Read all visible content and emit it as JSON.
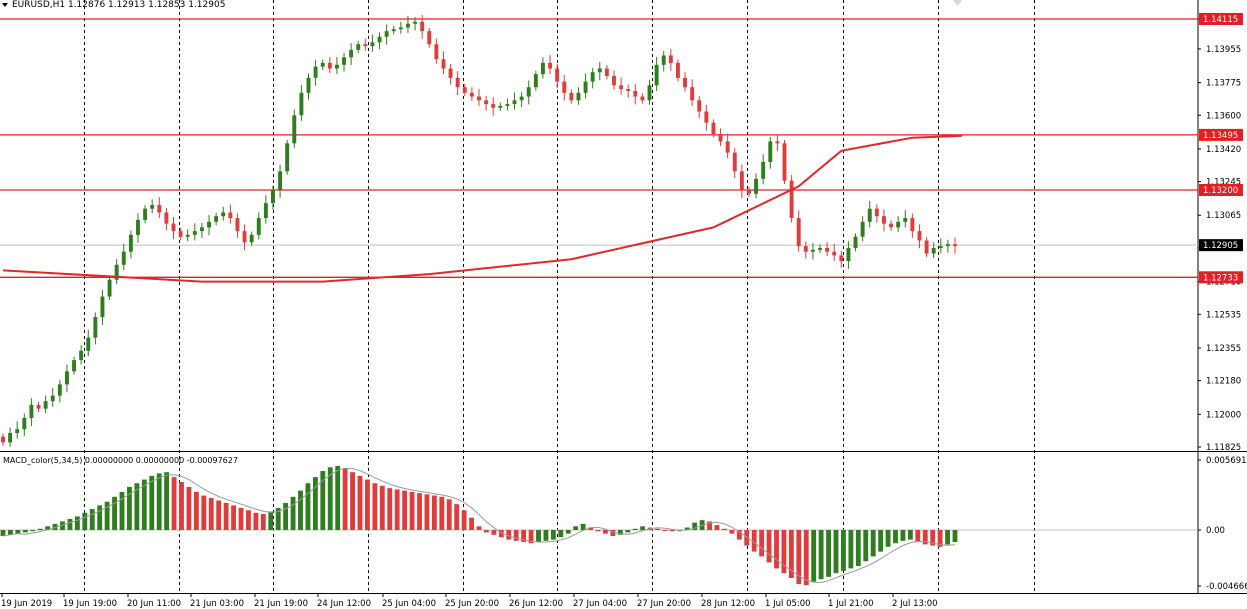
{
  "window": {
    "symbol_header": "EURUSD,H1  1.12876 1.12913 1.12853 1.12905",
    "macd_header": "MACD_color(5,34,5) 0.00000000 0.00000000 -0.00097627"
  },
  "colors": {
    "bull": "#2e7d1e",
    "bear": "#e03c3c",
    "level_line": "#e31e24",
    "ma_line": "#e0292b",
    "grid": "#000000",
    "background": "#ffffff"
  },
  "chart_data": [
    {
      "type": "candlestick",
      "title": "",
      "price_axis": {
        "range": [
          1.1182,
          1.1418
        ],
        "ticks": [
          "1.14115",
          "1.13955",
          "1.13775",
          "1.13600",
          "1.13420",
          "1.13245",
          "1.13065",
          "1.12890",
          "1.12710",
          "1.12535",
          "1.12355",
          "1.12180",
          "1.12000",
          "1.11825"
        ]
      },
      "time_axis": {
        "labels": [
          "19 Jun 2019",
          "19 Jun 19:00",
          "20 Jun 11:00",
          "21 Jun 03:00",
          "21 Jun 19:00",
          "24 Jun 12:00",
          "25 Jun 04:00",
          "25 Jun 20:00",
          "26 Jun 12:00",
          "27 Jun 04:00",
          "27 Jun 20:00",
          "28 Jun 12:00",
          "1 Jul 05:00",
          "1 Jul 21:00",
          "2 Jul 13:00"
        ]
      },
      "current_price": "1.12905",
      "horizontal_levels": [
        {
          "price": 1.14115,
          "label": "1.14115"
        },
        {
          "price": 1.13495,
          "label": "1.13495"
        },
        {
          "price": 1.132,
          "label": "1.13200"
        },
        {
          "price": 1.12733,
          "label": "1.12733"
        }
      ],
      "close_series": [
        1.1185,
        1.119,
        1.1192,
        1.1198,
        1.1205,
        1.1203,
        1.1207,
        1.121,
        1.1216,
        1.1223,
        1.1229,
        1.1234,
        1.1241,
        1.1252,
        1.1263,
        1.1272,
        1.128,
        1.1287,
        1.1296,
        1.1304,
        1.131,
        1.1312,
        1.1308,
        1.1302,
        1.1298,
        1.1295,
        1.1296,
        1.1298,
        1.13,
        1.1303,
        1.1306,
        1.1308,
        1.1305,
        1.1298,
        1.1292,
        1.1296,
        1.1305,
        1.1313,
        1.132,
        1.133,
        1.1345,
        1.136,
        1.1372,
        1.138,
        1.1386,
        1.1388,
        1.1385,
        1.1387,
        1.1391,
        1.1395,
        1.1398,
        1.1397,
        1.1399,
        1.1402,
        1.1405,
        1.1406,
        1.1407,
        1.1409,
        1.141,
        1.1405,
        1.1398,
        1.139,
        1.1385,
        1.138,
        1.1375,
        1.1372,
        1.137,
        1.1368,
        1.1366,
        1.1364,
        1.1365,
        1.1366,
        1.1368,
        1.137,
        1.1375,
        1.1382,
        1.1388,
        1.1385,
        1.1378,
        1.1372,
        1.1368,
        1.1372,
        1.1378,
        1.1383,
        1.1385,
        1.1381,
        1.1376,
        1.1374,
        1.1373,
        1.137,
        1.1368,
        1.1376,
        1.1387,
        1.1392,
        1.1388,
        1.138,
        1.1375,
        1.1368,
        1.1362,
        1.1356,
        1.135,
        1.1346,
        1.134,
        1.133,
        1.132,
        1.1318,
        1.1326,
        1.1335,
        1.1346,
        1.1345,
        1.1325,
        1.1305,
        1.129,
        1.1287,
        1.1288,
        1.1289,
        1.1287,
        1.1285,
        1.1282,
        1.1289,
        1.1295,
        1.1303,
        1.131,
        1.1306,
        1.1302,
        1.13,
        1.1303,
        1.1305,
        1.1298,
        1.1293,
        1.1286,
        1.1289,
        1.129,
        1.1291,
        1.129
      ],
      "moving_average": [
        {
          "x": 0,
          "y": 1.1277
        },
        {
          "x": 28,
          "y": 1.1271
        },
        {
          "x": 45,
          "y": 1.1271
        },
        {
          "x": 60,
          "y": 1.1275
        },
        {
          "x": 80,
          "y": 1.1283
        },
        {
          "x": 100,
          "y": 1.13
        },
        {
          "x": 112,
          "y": 1.1322
        },
        {
          "x": 118,
          "y": 1.1341
        },
        {
          "x": 128,
          "y": 1.1348
        },
        {
          "x": 135,
          "y": 1.1349
        }
      ]
    },
    {
      "type": "bar",
      "title": "",
      "axis": {
        "ticks": [
          "0.0056913",
          "0.00",
          "-0.0046660"
        ],
        "range": [
          -0.004666,
          0.0056913
        ]
      },
      "histogram": [
        -0.0005,
        -0.0004,
        -0.0003,
        -0.0002,
        -0.0001,
        0.0001,
        0.0003,
        0.0005,
        0.0007,
        0.0009,
        0.0011,
        0.0014,
        0.0017,
        0.002,
        0.0023,
        0.0027,
        0.0031,
        0.0035,
        0.0038,
        0.0041,
        0.0044,
        0.0046,
        0.0047,
        0.0043,
        0.0039,
        0.0035,
        0.0031,
        0.0028,
        0.0026,
        0.0024,
        0.0022,
        0.002,
        0.0018,
        0.0016,
        0.0014,
        0.0013,
        0.0015,
        0.0018,
        0.0022,
        0.0027,
        0.0032,
        0.0038,
        0.0043,
        0.0048,
        0.0051,
        0.0052,
        0.005,
        0.0047,
        0.0044,
        0.0041,
        0.0038,
        0.0036,
        0.0034,
        0.0033,
        0.0032,
        0.0031,
        0.003,
        0.0029,
        0.0028,
        0.0027,
        0.0025,
        0.0021,
        0.0016,
        0.001,
        0.0003,
        -0.0002,
        -0.0004,
        -0.0006,
        -0.0008,
        -0.0009,
        -0.001,
        -0.0011,
        -0.001,
        -0.0009,
        -0.0008,
        -0.0006,
        -0.0003,
        0.0003,
        0.0005,
        0.0002,
        -0.0001,
        -0.0003,
        -0.0005,
        -0.0004,
        -0.0002,
        0.0001,
        0.0003,
        0.0002,
        0.0001,
        0.0,
        -0.0001,
        -0.0001,
        0.0002,
        0.0006,
        0.0008,
        0.0007,
        0.0004,
        0.0001,
        -0.0003,
        -0.0008,
        -0.0013,
        -0.0018,
        -0.0022,
        -0.0027,
        -0.0032,
        -0.0036,
        -0.004,
        -0.0045,
        -0.0046,
        -0.0043,
        -0.0041,
        -0.0039,
        -0.0036,
        -0.0034,
        -0.0032,
        -0.003,
        -0.0026,
        -0.0022,
        -0.0018,
        -0.0014,
        -0.0011,
        -0.0009,
        -0.0008,
        -0.001,
        -0.0012,
        -0.0013,
        -0.0014,
        -0.0012,
        -0.001
      ]
    }
  ]
}
